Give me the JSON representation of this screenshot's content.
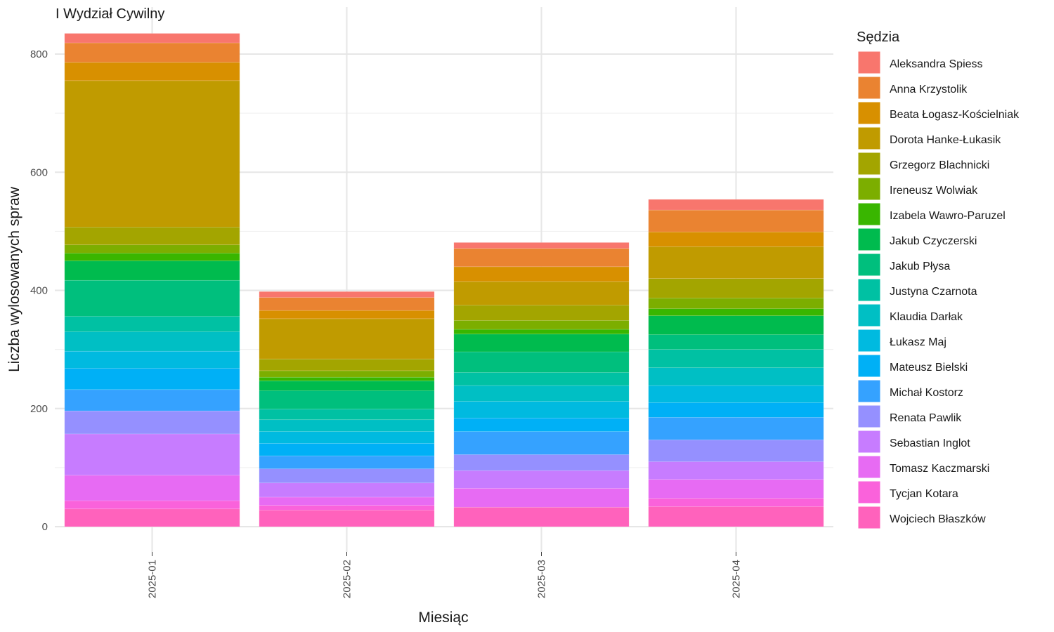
{
  "chart_data": {
    "type": "bar",
    "stacked": true,
    "title": "I Wydział Cywilny",
    "xlabel": "Miesiąc",
    "ylabel": "Liczba wylosowanych spraw",
    "legend_title": "Sędzia",
    "legend_position": "right",
    "grid": true,
    "ylim": [
      0,
      840
    ],
    "yticks": [
      0,
      200,
      400,
      600,
      800
    ],
    "categories": [
      "2025-01",
      "2025-02",
      "2025-03",
      "2025-04"
    ],
    "series": [
      {
        "name": "Aleksandra Spiess",
        "color": "#F8766D",
        "values": [
          16,
          10,
          10,
          18
        ]
      },
      {
        "name": "Anna Krzystolik",
        "color": "#EA8331",
        "values": [
          33,
          22,
          31,
          37
        ]
      },
      {
        "name": "Beata Łogasz-Kościelniak",
        "color": "#D89000",
        "values": [
          31,
          14,
          25,
          25
        ]
      },
      {
        "name": "Dorota Hanke-Łukasik",
        "color": "#C09B00",
        "values": [
          248,
          68,
          40,
          54
        ]
      },
      {
        "name": "Grzegorz Blachnicki",
        "color": "#A3A500",
        "values": [
          30,
          20,
          26,
          33
        ]
      },
      {
        "name": "Ireneusz Wolwiak",
        "color": "#7CAE00",
        "values": [
          14,
          11,
          15,
          18
        ]
      },
      {
        "name": "Izabela Wawro-Paruzel",
        "color": "#39B600",
        "values": [
          13,
          6,
          8,
          12
        ]
      },
      {
        "name": "Jakub Czyczerski",
        "color": "#00BB4E",
        "values": [
          33,
          17,
          30,
          32
        ]
      },
      {
        "name": "Jakub Płysa",
        "color": "#00BF7D",
        "values": [
          61,
          31,
          35,
          25
        ]
      },
      {
        "name": "Justyna Czarnota",
        "color": "#00C1A3",
        "values": [
          26,
          18,
          22,
          31
        ]
      },
      {
        "name": "Klaudia Darłak",
        "color": "#00BFC4",
        "values": [
          33,
          20,
          27,
          30
        ]
      },
      {
        "name": "Łukasz Maj",
        "color": "#00BAE0",
        "values": [
          29,
          20,
          28,
          29
        ]
      },
      {
        "name": "Mateusz Bielski",
        "color": "#00B0F6",
        "values": [
          36,
          21,
          23,
          25
        ]
      },
      {
        "name": "Michał Kostorz",
        "color": "#35A2FF",
        "values": [
          36,
          22,
          39,
          38
        ]
      },
      {
        "name": "Renata Pawlik",
        "color": "#9590FF",
        "values": [
          39,
          24,
          27,
          37
        ]
      },
      {
        "name": "Sebastian Inglot",
        "color": "#C77CFF",
        "values": [
          70,
          24,
          30,
          30
        ]
      },
      {
        "name": "Tomasz Kaczmarski",
        "color": "#E76BF3",
        "values": [
          43,
          14,
          32,
          32
        ]
      },
      {
        "name": "Tycjan Kotara",
        "color": "#FA62DB",
        "values": [
          14,
          8,
          0,
          14
        ]
      },
      {
        "name": "Wojciech Błaszków",
        "color": "#FF62BC",
        "values": [
          30,
          28,
          33,
          34
        ]
      }
    ]
  }
}
